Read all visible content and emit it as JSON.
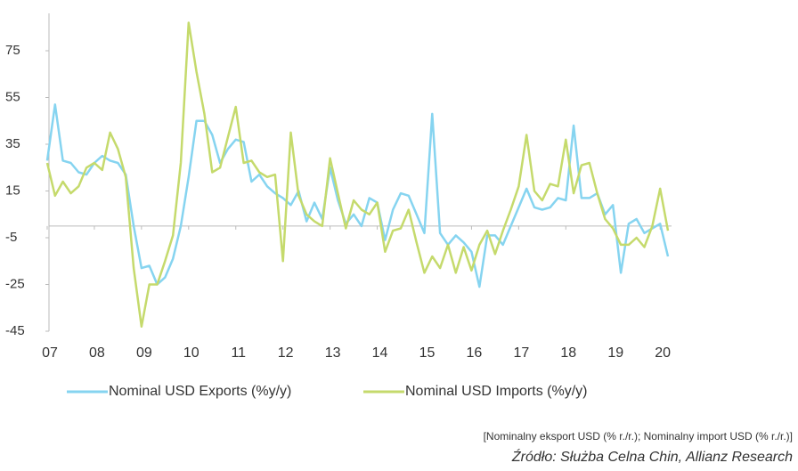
{
  "chart_data": {
    "type": "line",
    "categories": [
      "07",
      null,
      null,
      null,
      null,
      null,
      "08",
      null,
      null,
      null,
      null,
      null,
      "09",
      null,
      null,
      null,
      null,
      null,
      "10",
      null,
      null,
      null,
      null,
      null,
      "11",
      null,
      null,
      null,
      null,
      null,
      "12",
      null,
      null,
      null,
      null,
      null,
      "13",
      null,
      null,
      null,
      null,
      null,
      "14",
      null,
      null,
      null,
      null,
      null,
      "15",
      null,
      null,
      null,
      null,
      null,
      "16",
      null,
      null,
      null,
      null,
      null,
      "17",
      null,
      null,
      null,
      null,
      null,
      "18",
      null,
      null,
      null,
      null,
      null,
      "19",
      null,
      null,
      null,
      null,
      null,
      "20",
      null
    ],
    "series": [
      {
        "name": "Nominal USD Exports (%y/y)",
        "color": "#86d4f0",
        "values": [
          28,
          52,
          28,
          27,
          23,
          22,
          27,
          30,
          28,
          27,
          22,
          0,
          -18,
          -17,
          -25,
          -22,
          -14,
          0,
          21,
          45,
          45,
          39,
          27,
          33,
          37,
          36,
          19,
          22,
          17,
          14,
          12,
          9,
          15,
          2,
          10,
          3,
          25,
          11,
          1,
          5,
          0,
          12,
          10,
          -6,
          7,
          14,
          13,
          5,
          -3,
          48,
          -3,
          -8,
          -4,
          -7,
          -11,
          -26,
          -4,
          -4,
          -8,
          0,
          8,
          16,
          8,
          7,
          8,
          12,
          11,
          43,
          12,
          12,
          14,
          5,
          9,
          -20,
          1,
          3,
          -3,
          -1,
          1,
          -13
        ]
      },
      {
        "name": "Nominal USD Imports (%y/y)",
        "color": "#c5da6c",
        "values": [
          27,
          13,
          19,
          14,
          17,
          25,
          27,
          24,
          40,
          33,
          21,
          -18,
          -43,
          -25,
          -25,
          -15,
          -4,
          27,
          87,
          66,
          48,
          23,
          25,
          38,
          51,
          27,
          28,
          23,
          21,
          22,
          -15,
          40,
          13,
          5,
          2,
          0,
          29,
          14,
          -1,
          11,
          7,
          5,
          10,
          -11,
          -2,
          -1,
          7,
          -7,
          -20,
          -13,
          -18,
          -8,
          -20,
          -9,
          -19,
          -8,
          -2,
          -12,
          -2,
          7,
          17,
          39,
          15,
          11,
          18,
          17,
          37,
          14,
          26,
          27,
          14,
          3,
          -1,
          -8,
          -8,
          -5,
          -9,
          0,
          16,
          -2
        ]
      }
    ],
    "ylim": [
      -45,
      91
    ],
    "yticks": [
      -45,
      -25,
      -5,
      15,
      35,
      55,
      75
    ],
    "legend": "bottom",
    "note": "[Nominalny eksport USD (% r./r.); Nominalny import USD (% r./r.)]",
    "source": "Źródło: Służba Celna Chin, Allianz Research"
  }
}
